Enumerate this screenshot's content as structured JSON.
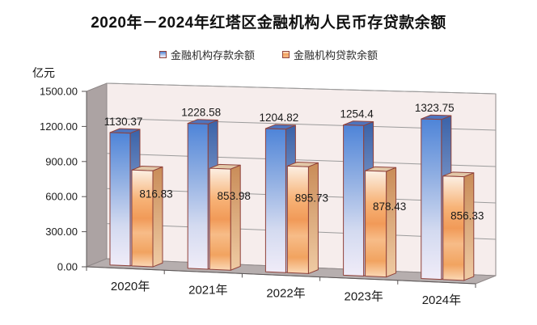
{
  "header": {
    "title": "2020年－2024年红塔区金融机构人民币存贷款余额"
  },
  "legend": {
    "items": [
      {
        "label": "金融机构存款余额",
        "series": "deposit"
      },
      {
        "label": "金融机构贷款余额",
        "series": "loan"
      }
    ]
  },
  "axis_unit_label": "亿元",
  "chart_data": {
    "type": "bar",
    "subtype": "3d-clustered-column",
    "title": "2020年－2024年红塔区金融机构人民币存贷款余额",
    "xlabel": "",
    "ylabel": "亿元",
    "categories": [
      "2020年",
      "2021年",
      "2022年",
      "2023年",
      "2024年"
    ],
    "series": [
      {
        "name": "金融机构存款余额",
        "key": "deposit",
        "values": [
          1130.37,
          1228.58,
          1204.82,
          1254.4,
          1323.75
        ]
      },
      {
        "name": "金融机构贷款余额",
        "key": "loan",
        "values": [
          816.83,
          853.98,
          895.73,
          878.43,
          856.33
        ]
      }
    ],
    "data_labels": {
      "deposit": [
        "1130.37",
        "1228.58",
        "1204.82",
        "1254.4",
        "1323.75"
      ],
      "loan": [
        "816.83",
        "853.98",
        "895.73",
        "878.43",
        "856.33"
      ]
    },
    "ylim": [
      0,
      1500
    ],
    "ytick_step": 300,
    "yticks": [
      "0.00",
      "300.00",
      "600.00",
      "900.00",
      "1200.00",
      "1500.00"
    ],
    "grid": true,
    "legend_position": "top",
    "colors": {
      "deposit_front_stops": [
        [
          0,
          "#4E84D8"
        ],
        [
          0.35,
          "#8FAEE2"
        ],
        [
          0.7,
          "#D3DAF0"
        ],
        [
          1,
          "#F0ECF8"
        ]
      ],
      "deposit_side_stops": [
        [
          0,
          "#3A62A8"
        ],
        [
          1,
          "#C6CFEA"
        ]
      ],
      "deposit_top": "#4E74BE",
      "loan_front_stops": [
        [
          0,
          "#FCF0E4"
        ],
        [
          0.3,
          "#F7B377"
        ],
        [
          0.5,
          "#F19A58"
        ],
        [
          0.65,
          "#F7BC88"
        ],
        [
          0.85,
          "#F1A360"
        ],
        [
          1,
          "#FBD9B6"
        ]
      ],
      "loan_side_stops": [
        [
          0,
          "#C98C58"
        ],
        [
          1,
          "#EFCBA4"
        ]
      ],
      "loan_top": "#E2C8A8",
      "bar_border": "#90413A",
      "back_wall": "#F6EDEC",
      "wall_edge": "#8F8888",
      "side_wall": "#ACA3A3",
      "floor": "#B6AEAE",
      "gridline": "#9B9B9B",
      "axis": "#5A5555",
      "text": "#1A1A1A"
    }
  }
}
